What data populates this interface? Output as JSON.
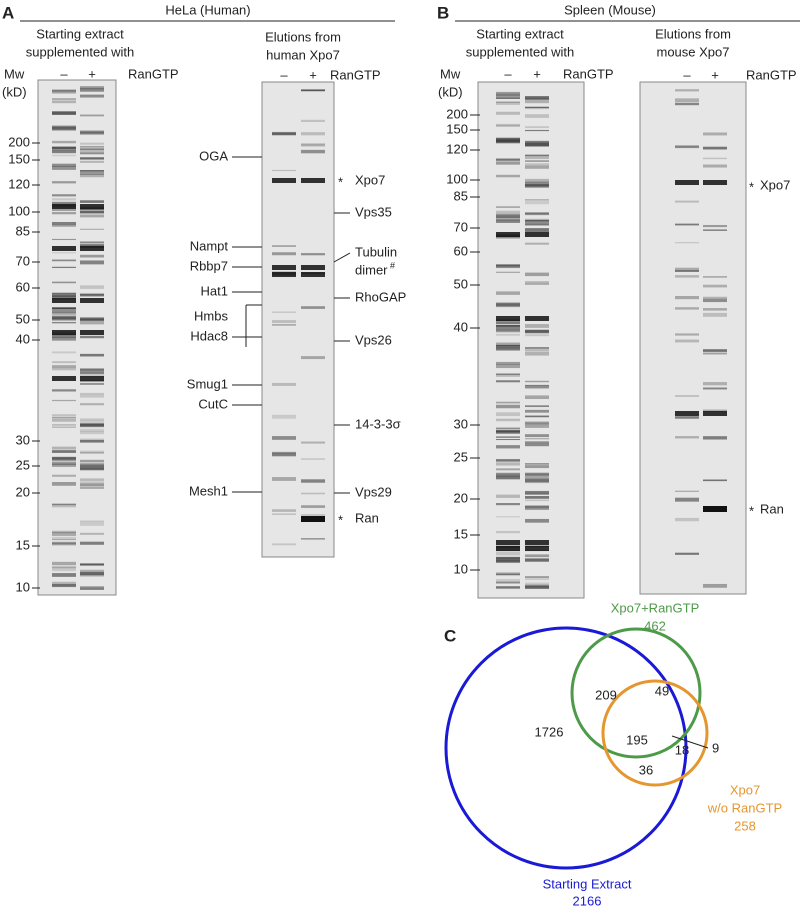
{
  "panel_a": {
    "letter": "A",
    "title": "HeLa (Human)",
    "extract_header": [
      "Starting extract",
      "supplemented with"
    ],
    "mw": "Mw",
    "kd": "(kD)",
    "lanes": [
      "–",
      "+"
    ],
    "rangtp": "RanGTP",
    "markers": [
      200,
      150,
      120,
      100,
      85,
      70,
      60,
      50,
      40,
      30,
      25,
      20,
      15,
      10
    ],
    "elution_header": [
      "Elutions from",
      "human Xpo7"
    ],
    "elution_lanes": [
      "–",
      "+"
    ],
    "elution_rangtp": "RanGTP",
    "left_labels": [
      "OGA",
      "Nampt",
      "Rbbp7",
      "Hat1",
      "Hmbs",
      "Hdac8",
      "Smug1",
      "CutC",
      "Mesh1"
    ],
    "right_labels": [
      "Xpo7",
      "Vps35",
      "Tubulin",
      "dimer",
      "RhoGAP",
      "Vps26",
      "14-3-3σ",
      "Vps29",
      "Ran"
    ],
    "dimer_mark": "#",
    "star": "*"
  },
  "panel_b": {
    "letter": "B",
    "title": "Spleen (Mouse)",
    "extract_header": [
      "Starting extract",
      "supplemented with"
    ],
    "mw": "Mw",
    "kd": "(kD)",
    "lanes": [
      "–",
      "+"
    ],
    "rangtp": "RanGTP",
    "markers": [
      200,
      150,
      120,
      100,
      85,
      70,
      60,
      50,
      40,
      30,
      25,
      20,
      15,
      10
    ],
    "elution_header": [
      "Elutions from",
      "mouse Xpo7"
    ],
    "elution_lanes": [
      "–",
      "+"
    ],
    "elution_rangtp": "RanGTP",
    "right_labels": [
      "Xpo7",
      "Ran"
    ],
    "star": "*"
  },
  "panel_c": {
    "letter": "C",
    "green_label": "Xpo7+RanGTP",
    "green_total": "462",
    "orange_label": [
      "Xpo7",
      "w/o RanGTP"
    ],
    "orange_total": "258",
    "blue_label": "Starting Extract",
    "blue_total": "2166",
    "regions": [
      "1726",
      "209",
      "49",
      "195",
      "9",
      "18",
      "36"
    ]
  }
}
